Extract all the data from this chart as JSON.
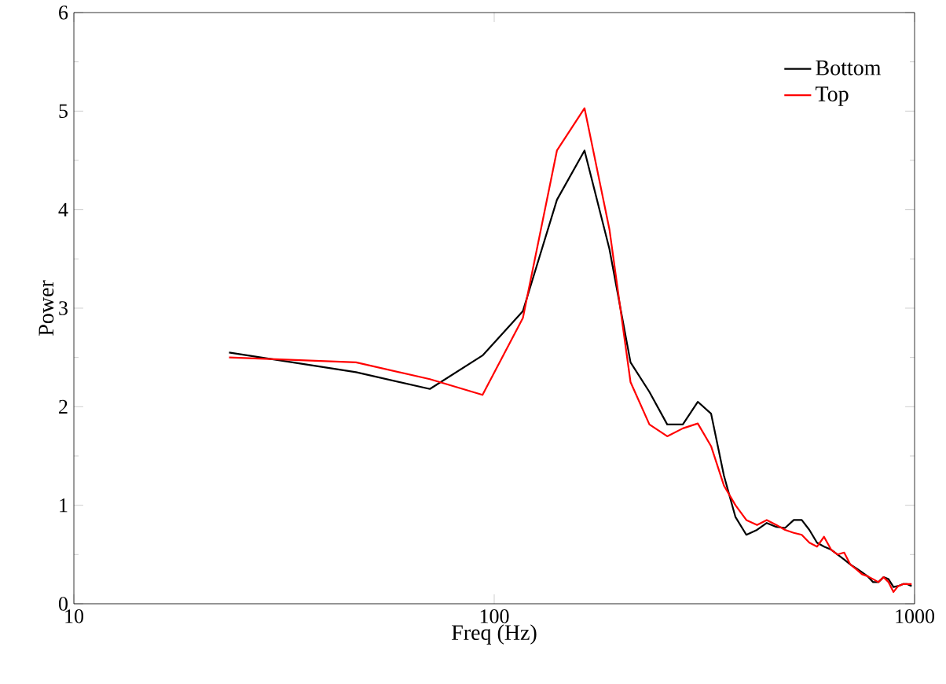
{
  "chart_data": {
    "type": "line",
    "xlabel": "Freq (Hz)",
    "ylabel": "Power",
    "log": "x",
    "legend": "top right",
    "xlim": [
      10,
      1000
    ],
    "xticks": [
      10,
      100,
      1000
    ],
    "ylim": [
      0,
      6
    ],
    "yticks": [
      0,
      1,
      2,
      3,
      4,
      5,
      6
    ],
    "x": [
      23.4,
      46.9,
      70.3,
      93.8,
      117,
      141,
      164,
      188,
      211,
      234,
      258,
      281,
      305,
      328,
      352,
      375,
      398,
      422,
      445,
      469,
      492,
      516,
      539,
      562,
      586,
      609,
      633,
      656,
      680,
      703,
      727,
      750,
      773,
      797,
      820,
      844,
      867,
      891,
      914,
      938,
      961,
      984
    ],
    "series": [
      {
        "name": "Bottom",
        "color": "#000000",
        "values": [
          2.55,
          2.35,
          2.18,
          2.52,
          2.97,
          4.1,
          4.6,
          3.6,
          2.45,
          2.15,
          1.82,
          1.82,
          2.05,
          1.93,
          1.3,
          0.88,
          0.7,
          0.75,
          0.82,
          0.78,
          0.77,
          0.85,
          0.85,
          0.75,
          0.62,
          0.58,
          0.55,
          0.5,
          0.45,
          0.4,
          0.36,
          0.32,
          0.28,
          0.22,
          0.22,
          0.27,
          0.25,
          0.17,
          0.18,
          0.2,
          0.2,
          0.18
        ]
      },
      {
        "name": "Top",
        "color": "#ff0000",
        "values": [
          2.5,
          2.45,
          2.28,
          2.12,
          2.9,
          4.6,
          5.03,
          3.8,
          2.25,
          1.82,
          1.7,
          1.78,
          1.83,
          1.6,
          1.2,
          1.0,
          0.85,
          0.8,
          0.85,
          0.8,
          0.75,
          0.72,
          0.7,
          0.62,
          0.58,
          0.68,
          0.55,
          0.5,
          0.52,
          0.4,
          0.35,
          0.3,
          0.28,
          0.25,
          0.22,
          0.27,
          0.22,
          0.12,
          0.18,
          0.2,
          0.2,
          0.2
        ]
      }
    ]
  }
}
